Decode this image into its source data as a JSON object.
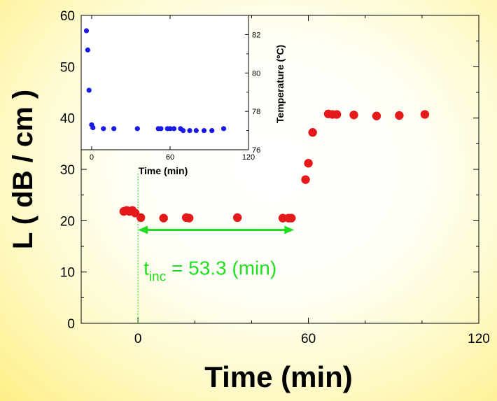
{
  "chart_data": [
    {
      "type": "scatter",
      "xlabel": "Time  (min)",
      "ylabel": "L ( dB / cm )",
      "xlim": [
        -20,
        120
      ],
      "ylim": [
        0,
        60
      ],
      "xticks": [
        0,
        60,
        120
      ],
      "yticks": [
        0,
        10,
        20,
        30,
        40,
        50,
        60
      ],
      "color": "#e41a1a",
      "x": [
        -5,
        -4,
        -3,
        -2,
        -1,
        1,
        9,
        17,
        18,
        35,
        51,
        53,
        54,
        59,
        60,
        61.5,
        67,
        68.5,
        70,
        76,
        84,
        92,
        101
      ],
      "y": [
        21.8,
        22,
        21.8,
        22,
        21.5,
        20.6,
        20.5,
        20.6,
        20.5,
        20.6,
        20.5,
        20.5,
        20.5,
        28,
        31.2,
        37.2,
        40.8,
        40.7,
        40.7,
        40.6,
        40.4,
        40.5,
        40.7
      ],
      "annotation": {
        "base": "t",
        "sub": "inc",
        "rest": " = 53.3 (min)",
        "color": "#22dd22",
        "arrow_from": 0,
        "arrow_to": 55,
        "arrow_y": 18.2,
        "label_y": 9.5
      },
      "vline_x": 0
    },
    {
      "type": "scatter",
      "inset": true,
      "xlabel": "Time  (min)",
      "ylabel": "Temperature  (ºC)",
      "xlim": [
        -8,
        120
      ],
      "ylim": [
        76,
        83
      ],
      "xticks": [
        0,
        60,
        120
      ],
      "yticks": [
        76,
        78,
        80,
        82
      ],
      "color": "#1a1ae6",
      "x": [
        -4,
        -3,
        -2,
        0,
        1,
        9,
        17,
        35,
        51,
        53,
        58,
        60,
        63,
        68,
        70,
        75,
        80,
        86,
        92,
        101
      ],
      "y": [
        82.2,
        81.2,
        79.1,
        77.3,
        77.15,
        77.1,
        77.1,
        77.1,
        77.1,
        77.1,
        77.1,
        77.1,
        77.1,
        77.1,
        77.0,
        77.0,
        77.0,
        77.0,
        77.0,
        77.1
      ]
    }
  ]
}
